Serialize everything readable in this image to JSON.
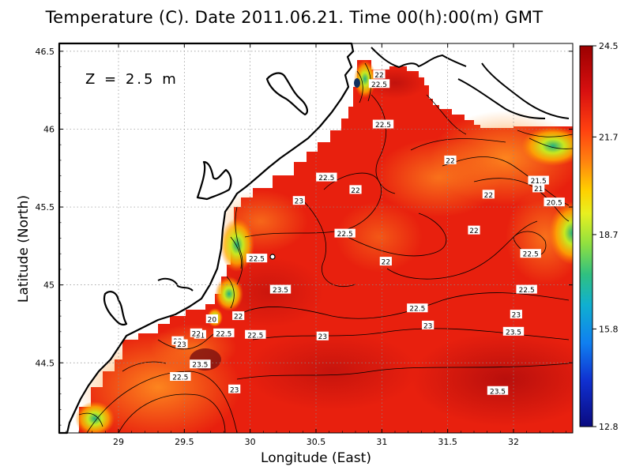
{
  "title": "Temperature (C). Date 2011.06.21. Time 00(h):00(m) GMT",
  "depth_label": "Z = 2.5 m",
  "chart_data": {
    "type": "heatmap",
    "xlabel": "Longitude (East)",
    "ylabel": "Latitude (North)",
    "xlim": [
      28.55,
      32.45
    ],
    "ylim": [
      44.05,
      46.55
    ],
    "xticks": [
      "29",
      "29.5",
      "30",
      "30.5",
      "31",
      "31.5",
      "32"
    ],
    "xtick_values": [
      29,
      29.5,
      30,
      30.5,
      31,
      31.5,
      32
    ],
    "yticks": [
      "44.5",
      "45",
      "45.5",
      "46",
      "46.5"
    ],
    "ytick_values": [
      44.5,
      45,
      45.5,
      46,
      46.5
    ],
    "grid": true,
    "colorbar": {
      "ticks": [
        "24.5",
        "21.7",
        "18.7",
        "15.8",
        "12.8"
      ],
      "tick_values": [
        24.5,
        21.7,
        18.7,
        15.8,
        12.8
      ],
      "min": 12.8,
      "max": 24.5
    },
    "contour_labels": [
      {
        "text": "22",
        "lon": 30.98,
        "lat": 46.35
      },
      {
        "text": "22.5",
        "lon": 30.98,
        "lat": 46.29
      },
      {
        "text": "22.5",
        "lon": 31.01,
        "lat": 46.03
      },
      {
        "text": "22",
        "lon": 31.52,
        "lat": 45.8
      },
      {
        "text": "22.5",
        "lon": 30.58,
        "lat": 45.69
      },
      {
        "text": "22",
        "lon": 30.8,
        "lat": 45.61
      },
      {
        "text": "23",
        "lon": 30.37,
        "lat": 45.54
      },
      {
        "text": "22",
        "lon": 31.81,
        "lat": 45.58
      },
      {
        "text": "21.5",
        "lon": 32.19,
        "lat": 45.67
      },
      {
        "text": "21",
        "lon": 32.19,
        "lat": 45.62
      },
      {
        "text": "20.5",
        "lon": 32.31,
        "lat": 45.53
      },
      {
        "text": "22.5",
        "lon": 30.72,
        "lat": 45.33
      },
      {
        "text": "22",
        "lon": 31.7,
        "lat": 45.35
      },
      {
        "text": "22.5",
        "lon": 30.05,
        "lat": 45.17
      },
      {
        "text": "22",
        "lon": 31.03,
        "lat": 45.15
      },
      {
        "text": "22.5",
        "lon": 32.13,
        "lat": 45.2
      },
      {
        "text": "23.5",
        "lon": 30.23,
        "lat": 44.97
      },
      {
        "text": "22.5",
        "lon": 32.1,
        "lat": 44.97
      },
      {
        "text": "22.5",
        "lon": 31.27,
        "lat": 44.85
      },
      {
        "text": "22",
        "lon": 29.91,
        "lat": 44.8
      },
      {
        "text": "20",
        "lon": 29.71,
        "lat": 44.78
      },
      {
        "text": "23",
        "lon": 32.02,
        "lat": 44.81
      },
      {
        "text": "23",
        "lon": 31.35,
        "lat": 44.74
      },
      {
        "text": "23.5",
        "lon": 32.0,
        "lat": 44.7
      },
      {
        "text": "22.5",
        "lon": 29.8,
        "lat": 44.69
      },
      {
        "text": "22.5",
        "lon": 30.04,
        "lat": 44.68
      },
      {
        "text": "23",
        "lon": 30.55,
        "lat": 44.67
      },
      {
        "text": "21",
        "lon": 29.62,
        "lat": 44.68
      },
      {
        "text": "22",
        "lon": 29.59,
        "lat": 44.69
      },
      {
        "text": "22",
        "lon": 29.45,
        "lat": 44.64
      },
      {
        "text": "23",
        "lon": 29.48,
        "lat": 44.62
      },
      {
        "text": "23.5",
        "lon": 29.62,
        "lat": 44.49
      },
      {
        "text": "22.5",
        "lon": 29.47,
        "lat": 44.41
      },
      {
        "text": "23",
        "lon": 29.88,
        "lat": 44.33
      },
      {
        "text": "23.5",
        "lon": 31.88,
        "lat": 44.32
      }
    ]
  },
  "colors": {
    "sea_warm": "#e8200e",
    "sea_hot": "#b00c0c",
    "sea_cool": "#f0601a",
    "land": "#ffffff",
    "coast": "#000000"
  }
}
